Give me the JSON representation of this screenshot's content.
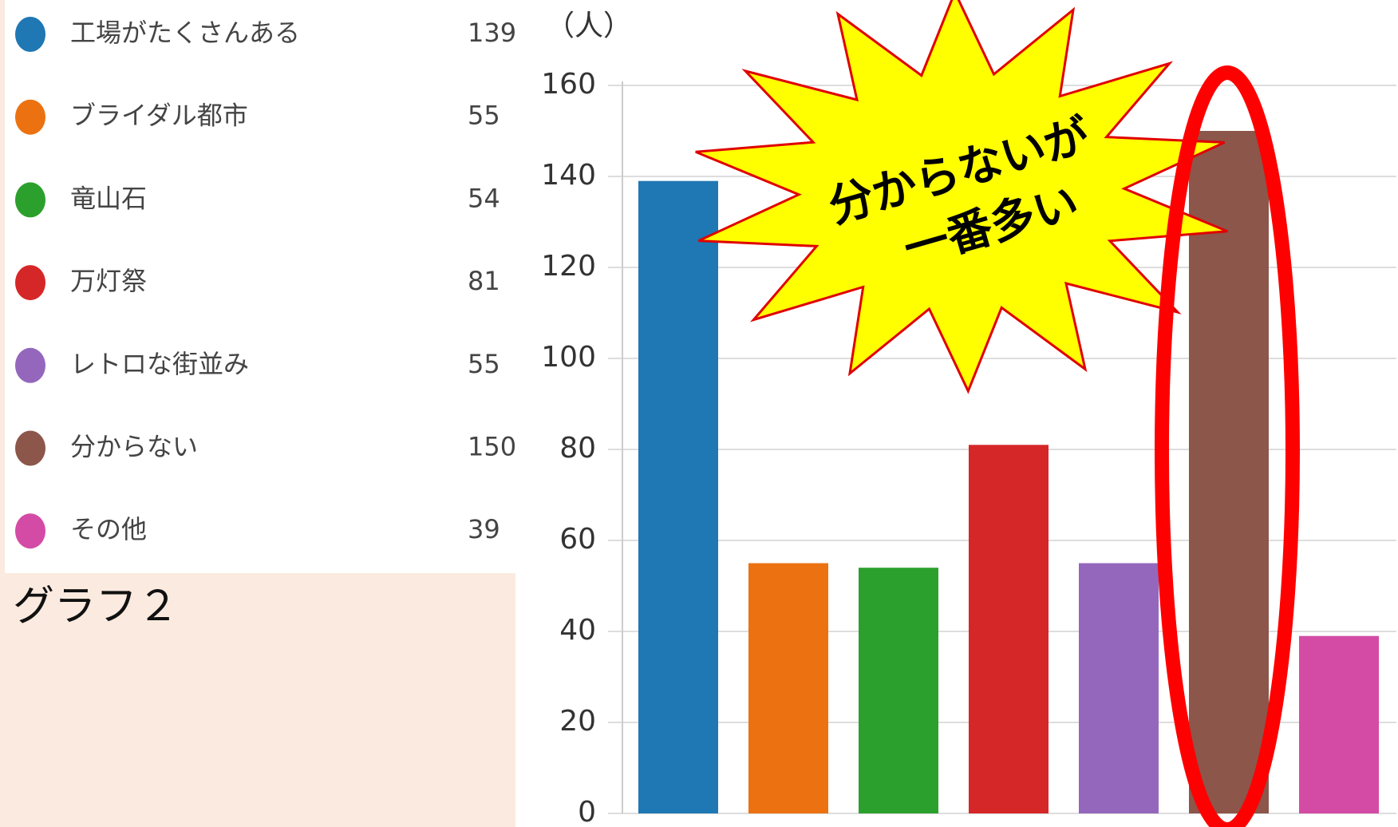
{
  "chart_data": {
    "type": "bar",
    "categories": [
      "工場がたくさんある",
      "ブライダル都市",
      "竜山石",
      "万灯祭",
      "レトロな街並み",
      "分からない",
      "その他"
    ],
    "values": [
      139,
      55,
      54,
      81,
      55,
      150,
      39
    ],
    "colors": [
      "#1f77b4",
      "#ec7211",
      "#2ca02c",
      "#d62728",
      "#9467bd",
      "#8c564b",
      "#d44ba6"
    ],
    "ylim": [
      0,
      160
    ],
    "yticks": [
      0,
      20,
      40,
      60,
      80,
      100,
      120,
      140,
      160
    ],
    "grid": true,
    "y_unit": "（人）",
    "caption": "グラフ２",
    "annotation": [
      "分からないが",
      "一番多い"
    ]
  }
}
